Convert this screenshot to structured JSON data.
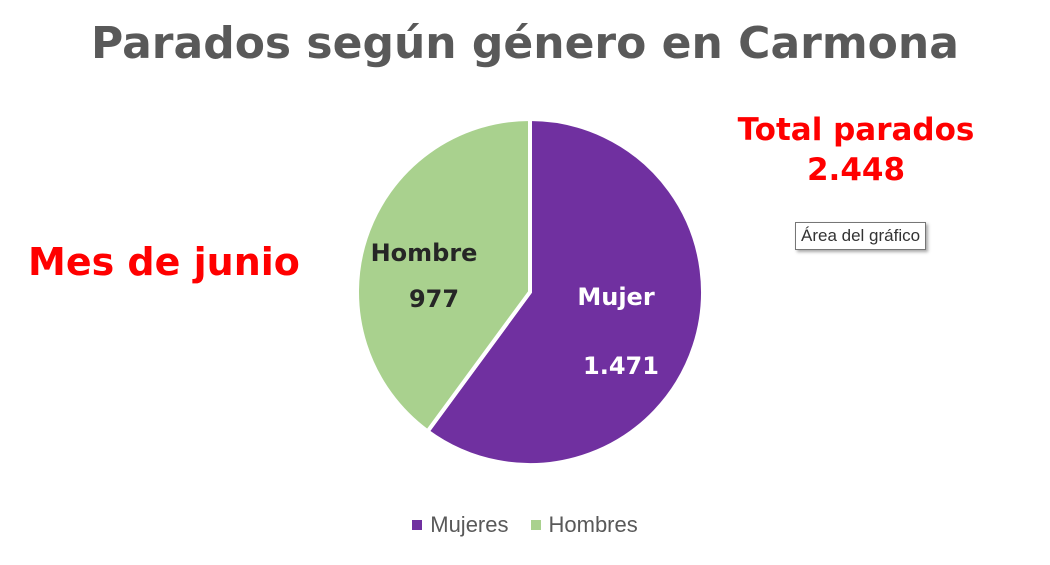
{
  "chart_data": {
    "type": "pie",
    "title": "Parados según género en Carmona",
    "slices": [
      {
        "legend": "Mujeres",
        "label": "Mujer",
        "value": 1471,
        "value_label": "1.471",
        "color": "#7030a0",
        "text_color": "#ffffff"
      },
      {
        "legend": "Hombres",
        "label": "Hombre",
        "value": 977,
        "value_label": "977",
        "color": "#a9d18e",
        "text_color": "#262626"
      }
    ],
    "legend_position": "bottom"
  },
  "annotations": {
    "month": "Mes de junio",
    "total_label": "Total parados",
    "total_value": "2.448"
  },
  "tooltip": "Área del gráfico"
}
